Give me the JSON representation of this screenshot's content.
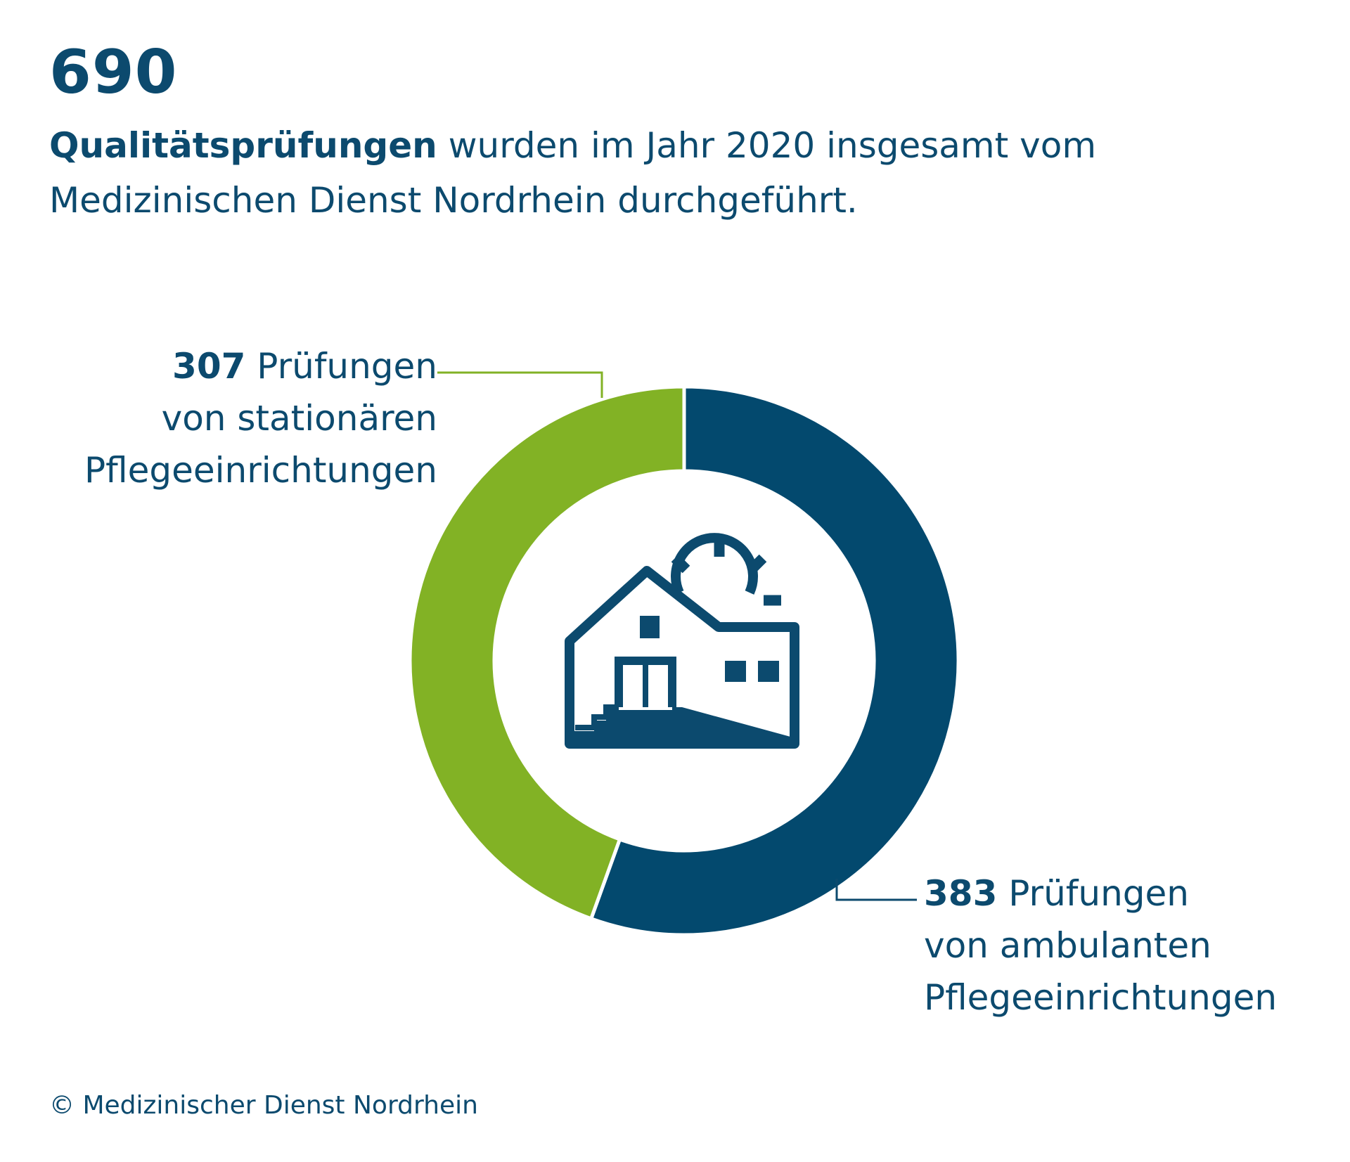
{
  "headline": {
    "number": "690",
    "bold_text": "Qualitätsprüfungen",
    "rest_text": " wurden im Jahr 2020 insgesamt vom Medizinischen Dienst Nordrhein durchgeführt."
  },
  "chart_data": {
    "type": "pie",
    "title": "",
    "labels": [
      "ambulante Pflegeeinrichtungen",
      "stationäre Pflegeeinrichtungen"
    ],
    "values": [
      383,
      307
    ],
    "total": 690,
    "colors": [
      "#03496e",
      "#82b225"
    ],
    "center_icon": "house-with-sun-icon"
  },
  "callouts": {
    "stationaer": {
      "value": "307",
      "line1_rest": " Prüfungen",
      "line2": "von stationären",
      "line3": "Pflegeeinrichtungen"
    },
    "ambulant": {
      "value": "383",
      "line1_rest": " Prüfungen",
      "line2": "von ambulanten",
      "line3": "Pflegeeinrichtungen"
    }
  },
  "footer": {
    "copyright": "© Medizinischer Dienst Nordrhein"
  }
}
